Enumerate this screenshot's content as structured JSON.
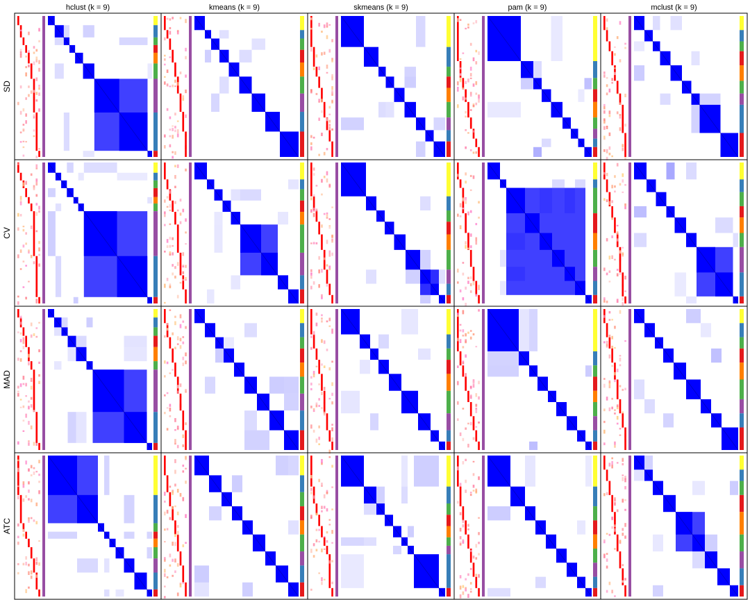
{
  "chart_data": {
    "type": "heatmap",
    "description_type": "consensus matrix grid",
    "columns": [
      "hclust (k = 9)",
      "kmeans (k = 9)",
      "skmeans (k = 9)",
      "pam (k = 9)",
      "mclust (k = 9)"
    ],
    "rows": [
      "SD",
      "CV",
      "MAD",
      "ATC"
    ],
    "k": 9,
    "value_range": [
      0,
      1
    ],
    "color_low": "#ffffff",
    "color_high": "#0000ff",
    "panels": [
      {
        "row": "SD",
        "col": "hclust (k = 9)",
        "class_proportions": [
          0.06,
          0.08,
          0.05,
          0.05,
          0.07,
          0.1,
          0.22,
          0.25,
          0.04
        ],
        "merged": [
          [
            6,
            7
          ]
        ],
        "label_colors": [
          "#ffff33",
          "#377eb8",
          "#4daf4a",
          "#e41a1c",
          "#ff7f00",
          "#4daf4a",
          "#984ea3",
          "#377eb8",
          "#e41a1c"
        ]
      },
      {
        "row": "SD",
        "col": "kmeans (k = 9)",
        "class_proportions": [
          0.1,
          0.06,
          0.08,
          0.09,
          0.1,
          0.12,
          0.13,
          0.14,
          0.18
        ],
        "merged": [],
        "label_colors": [
          "#ffff33",
          "#377eb8",
          "#4daf4a",
          "#e41a1c",
          "#ff7f00",
          "#4daf4a",
          "#984ea3",
          "#377eb8",
          "#e41a1c"
        ]
      },
      {
        "row": "SD",
        "col": "skmeans (k = 9)",
        "class_proportions": [
          0.22,
          0.14,
          0.07,
          0.08,
          0.1,
          0.11,
          0.09,
          0.08,
          0.11
        ],
        "merged": [],
        "label_colors": [
          "#ffff33",
          "#377eb8",
          "#4daf4a",
          "#e41a1c",
          "#ff7f00",
          "#4daf4a",
          "#984ea3",
          "#377eb8",
          "#e41a1c"
        ]
      },
      {
        "row": "SD",
        "col": "pam (k = 9)",
        "class_proportions": [
          0.32,
          0.12,
          0.08,
          0.09,
          0.11,
          0.08,
          0.07,
          0.06,
          0.07
        ],
        "merged": [],
        "label_colors": [
          "#ffff33",
          "#377eb8",
          "#4daf4a",
          "#e41a1c",
          "#ff7f00",
          "#4daf4a",
          "#984ea3",
          "#377eb8",
          "#e41a1c"
        ]
      },
      {
        "row": "SD",
        "col": "mclust (k = 9)",
        "class_proportions": [
          0.1,
          0.08,
          0.07,
          0.1,
          0.11,
          0.09,
          0.08,
          0.2,
          0.17
        ],
        "merged": [],
        "label_colors": [
          "#ffff33",
          "#377eb8",
          "#4daf4a",
          "#e41a1c",
          "#ff7f00",
          "#4daf4a",
          "#984ea3",
          "#377eb8",
          "#e41a1c"
        ]
      },
      {
        "row": "CV",
        "col": "hclust (k = 9)",
        "class_proportions": [
          0.08,
          0.06,
          0.06,
          0.07,
          0.05,
          0.06,
          0.35,
          0.32,
          0.05
        ],
        "merged": [
          [
            6,
            7
          ]
        ],
        "label_colors": [
          "#ffff33",
          "#377eb8",
          "#4daf4a",
          "#e41a1c",
          "#ff7f00",
          "#4daf4a",
          "#984ea3",
          "#377eb8",
          "#e41a1c"
        ]
      },
      {
        "row": "CV",
        "col": "kmeans (k = 9)",
        "class_proportions": [
          0.12,
          0.07,
          0.08,
          0.08,
          0.09,
          0.2,
          0.16,
          0.1,
          0.1
        ],
        "merged": [
          [
            5,
            6
          ]
        ],
        "label_colors": [
          "#ffff33",
          "#377eb8",
          "#4daf4a",
          "#e41a1c",
          "#ff7f00",
          "#4daf4a",
          "#984ea3",
          "#377eb8",
          "#e41a1c"
        ]
      },
      {
        "row": "CV",
        "col": "skmeans (k = 9)",
        "class_proportions": [
          0.24,
          0.1,
          0.08,
          0.09,
          0.11,
          0.14,
          0.1,
          0.08,
          0.06
        ],
        "merged": [
          [
            6,
            7
          ]
        ],
        "label_colors": [
          "#ffff33",
          "#377eb8",
          "#4daf4a",
          "#e41a1c",
          "#ff7f00",
          "#4daf4a",
          "#984ea3",
          "#377eb8",
          "#e41a1c"
        ]
      },
      {
        "row": "CV",
        "col": "pam (k = 9)",
        "class_proportions": [
          0.12,
          0.06,
          0.18,
          0.14,
          0.12,
          0.12,
          0.1,
          0.1,
          0.06
        ],
        "merged": [
          [
            2,
            3,
            4,
            5,
            6,
            7
          ]
        ],
        "label_colors": [
          "#ffff33",
          "#377eb8",
          "#4daf4a",
          "#e41a1c",
          "#ff7f00",
          "#4daf4a",
          "#984ea3",
          "#377eb8",
          "#e41a1c"
        ]
      },
      {
        "row": "CV",
        "col": "mclust (k = 9)",
        "class_proportions": [
          0.12,
          0.09,
          0.1,
          0.08,
          0.11,
          0.1,
          0.18,
          0.17,
          0.05
        ],
        "merged": [
          [
            6,
            7
          ]
        ],
        "label_colors": [
          "#ffff33",
          "#377eb8",
          "#4daf4a",
          "#e41a1c",
          "#ff7f00",
          "#4daf4a",
          "#984ea3",
          "#377eb8",
          "#e41a1c"
        ]
      },
      {
        "row": "MAD",
        "col": "hclust (k = 9)",
        "class_proportions": [
          0.06,
          0.07,
          0.06,
          0.08,
          0.1,
          0.06,
          0.3,
          0.22,
          0.05
        ],
        "merged": [
          [
            6,
            7
          ]
        ],
        "label_colors": [
          "#ffff33",
          "#377eb8",
          "#4daf4a",
          "#e41a1c",
          "#ff7f00",
          "#4daf4a",
          "#984ea3",
          "#377eb8",
          "#e41a1c"
        ]
      },
      {
        "row": "MAD",
        "col": "kmeans (k = 9)",
        "class_proportions": [
          0.1,
          0.1,
          0.08,
          0.1,
          0.1,
          0.12,
          0.12,
          0.14,
          0.14
        ],
        "merged": [],
        "label_colors": [
          "#ffff33",
          "#377eb8",
          "#4daf4a",
          "#e41a1c",
          "#ff7f00",
          "#4daf4a",
          "#984ea3",
          "#377eb8",
          "#e41a1c"
        ]
      },
      {
        "row": "MAD",
        "col": "skmeans (k = 9)",
        "class_proportions": [
          0.18,
          0.1,
          0.08,
          0.1,
          0.12,
          0.16,
          0.12,
          0.08,
          0.06
        ],
        "merged": [],
        "label_colors": [
          "#ffff33",
          "#377eb8",
          "#4daf4a",
          "#e41a1c",
          "#ff7f00",
          "#4daf4a",
          "#984ea3",
          "#377eb8",
          "#e41a1c"
        ]
      },
      {
        "row": "MAD",
        "col": "pam (k = 9)",
        "class_proportions": [
          0.3,
          0.1,
          0.08,
          0.1,
          0.08,
          0.1,
          0.1,
          0.08,
          0.06
        ],
        "merged": [],
        "label_colors": [
          "#ffff33",
          "#377eb8",
          "#4daf4a",
          "#e41a1c",
          "#ff7f00",
          "#4daf4a",
          "#984ea3",
          "#377eb8",
          "#e41a1c"
        ]
      },
      {
        "row": "MAD",
        "col": "mclust (k = 9)",
        "class_proportions": [
          0.1,
          0.1,
          0.08,
          0.1,
          0.12,
          0.14,
          0.1,
          0.1,
          0.16
        ],
        "merged": [],
        "label_colors": [
          "#ffff33",
          "#377eb8",
          "#4daf4a",
          "#e41a1c",
          "#ff7f00",
          "#4daf4a",
          "#984ea3",
          "#377eb8",
          "#e41a1c"
        ]
      },
      {
        "row": "ATC",
        "col": "hclust (k = 9)",
        "class_proportions": [
          0.28,
          0.2,
          0.06,
          0.05,
          0.06,
          0.08,
          0.1,
          0.12,
          0.05
        ],
        "merged": [
          [
            0,
            1
          ]
        ],
        "label_colors": [
          "#ffff33",
          "#377eb8",
          "#4daf4a",
          "#e41a1c",
          "#ff7f00",
          "#4daf4a",
          "#984ea3",
          "#377eb8",
          "#e41a1c"
        ]
      },
      {
        "row": "ATC",
        "col": "kmeans (k = 9)",
        "class_proportions": [
          0.14,
          0.12,
          0.1,
          0.1,
          0.1,
          0.12,
          0.1,
          0.12,
          0.1
        ],
        "merged": [],
        "label_colors": [
          "#ffff33",
          "#377eb8",
          "#4daf4a",
          "#e41a1c",
          "#ff7f00",
          "#4daf4a",
          "#984ea3",
          "#377eb8",
          "#e41a1c"
        ]
      },
      {
        "row": "ATC",
        "col": "skmeans (k = 9)",
        "class_proportions": [
          0.22,
          0.12,
          0.08,
          0.08,
          0.08,
          0.06,
          0.06,
          0.24,
          0.06
        ],
        "merged": [],
        "label_colors": [
          "#ffff33",
          "#377eb8",
          "#4daf4a",
          "#e41a1c",
          "#ff7f00",
          "#4daf4a",
          "#984ea3",
          "#377eb8",
          "#e41a1c"
        ]
      },
      {
        "row": "ATC",
        "col": "pam (k = 9)",
        "class_proportions": [
          0.22,
          0.14,
          0.1,
          0.1,
          0.1,
          0.1,
          0.1,
          0.08,
          0.06
        ],
        "merged": [],
        "label_colors": [
          "#ffff33",
          "#377eb8",
          "#4daf4a",
          "#e41a1c",
          "#ff7f00",
          "#4daf4a",
          "#984ea3",
          "#377eb8",
          "#e41a1c"
        ]
      },
      {
        "row": "ATC",
        "col": "mclust (k = 9)",
        "class_proportions": [
          0.1,
          0.08,
          0.1,
          0.12,
          0.16,
          0.12,
          0.12,
          0.12,
          0.08
        ],
        "merged": [
          [
            4,
            5
          ]
        ],
        "label_colors": [
          "#ffff33",
          "#377eb8",
          "#4daf4a",
          "#e41a1c",
          "#ff7f00",
          "#4daf4a",
          "#984ea3",
          "#377eb8",
          "#e41a1c"
        ]
      }
    ]
  }
}
